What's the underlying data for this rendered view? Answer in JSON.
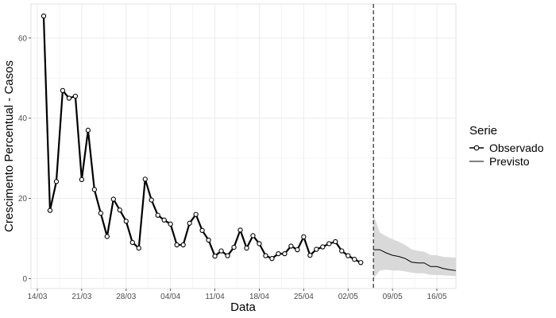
{
  "chart_data": {
    "type": "line",
    "xlabel": "Data",
    "ylabel": "Crescimento Percentual - Casos",
    "x_ticks": [
      "14/03",
      "21/03",
      "28/03",
      "04/04",
      "11/04",
      "18/04",
      "25/04",
      "02/05",
      "09/05",
      "16/05"
    ],
    "y_ticks": [
      0,
      20,
      40,
      60
    ],
    "ylim": [
      -2.5,
      68.5
    ],
    "xlim": [
      "2020-03-13",
      "2020-05-19"
    ],
    "grid": true,
    "legend": {
      "title": "Serie",
      "position": "right"
    },
    "vertical_line": {
      "x": "2020-05-06",
      "style": "dashed"
    },
    "colors": {
      "observed": "#000000",
      "forecast": "#000000",
      "ribbon": "#d9d9d9",
      "grid": "#ebebeb"
    },
    "series": [
      {
        "name": "Observado",
        "style": "line+points",
        "points": [
          [
            "2020-03-15",
            65.5
          ],
          [
            "2020-03-16",
            17.0
          ],
          [
            "2020-03-17",
            24.2
          ],
          [
            "2020-03-18",
            46.9
          ],
          [
            "2020-03-19",
            45.0
          ],
          [
            "2020-03-20",
            45.5
          ],
          [
            "2020-03-21",
            24.7
          ],
          [
            "2020-03-22",
            37.0
          ],
          [
            "2020-03-23",
            22.2
          ],
          [
            "2020-03-24",
            16.3
          ],
          [
            "2020-03-25",
            10.5
          ],
          [
            "2020-03-26",
            19.8
          ],
          [
            "2020-03-27",
            17.1
          ],
          [
            "2020-03-28",
            14.3
          ],
          [
            "2020-03-29",
            9.0
          ],
          [
            "2020-03-30",
            7.6
          ],
          [
            "2020-03-31",
            24.8
          ],
          [
            "2020-04-01",
            19.6
          ],
          [
            "2020-04-02",
            15.8
          ],
          [
            "2020-04-03",
            14.6
          ],
          [
            "2020-04-04",
            13.6
          ],
          [
            "2020-04-05",
            8.4
          ],
          [
            "2020-04-06",
            8.4
          ],
          [
            "2020-04-07",
            13.8
          ],
          [
            "2020-04-08",
            16.0
          ],
          [
            "2020-04-09",
            12.0
          ],
          [
            "2020-04-10",
            9.6
          ],
          [
            "2020-04-11",
            5.6
          ],
          [
            "2020-04-12",
            6.9
          ],
          [
            "2020-04-13",
            5.7
          ],
          [
            "2020-04-14",
            7.8
          ],
          [
            "2020-04-15",
            12.1
          ],
          [
            "2020-04-16",
            7.6
          ],
          [
            "2020-04-17",
            10.7
          ],
          [
            "2020-04-18",
            8.7
          ],
          [
            "2020-04-19",
            5.7
          ],
          [
            "2020-04-20",
            5.0
          ],
          [
            "2020-04-21",
            6.2
          ],
          [
            "2020-04-22",
            6.2
          ],
          [
            "2020-04-23",
            8.1
          ],
          [
            "2020-04-24",
            7.2
          ],
          [
            "2020-04-25",
            10.4
          ],
          [
            "2020-04-26",
            5.8
          ],
          [
            "2020-04-27",
            7.3
          ],
          [
            "2020-04-28",
            7.9
          ],
          [
            "2020-04-29",
            8.7
          ],
          [
            "2020-04-30",
            9.2
          ],
          [
            "2020-05-01",
            6.9
          ],
          [
            "2020-05-02",
            5.7
          ],
          [
            "2020-05-03",
            4.8
          ],
          [
            "2020-05-04",
            4.0
          ]
        ]
      },
      {
        "name": "Previsto",
        "style": "line+ribbon",
        "points": [
          [
            "2020-05-06",
            7.2,
            0.0,
            15.8
          ],
          [
            "2020-05-07",
            7.2,
            2.0,
            11.5
          ],
          [
            "2020-05-08",
            6.4,
            2.2,
            10.6
          ],
          [
            "2020-05-09",
            5.8,
            2.0,
            9.8
          ],
          [
            "2020-05-10",
            5.5,
            2.0,
            9.2
          ],
          [
            "2020-05-11",
            5.0,
            1.8,
            8.4
          ],
          [
            "2020-05-12",
            4.1,
            1.5,
            7.3
          ],
          [
            "2020-05-13",
            3.9,
            1.3,
            6.9
          ],
          [
            "2020-05-14",
            3.9,
            1.3,
            6.7
          ],
          [
            "2020-05-15",
            3.0,
            0.9,
            5.9
          ],
          [
            "2020-05-16",
            3.0,
            0.9,
            5.8
          ],
          [
            "2020-05-17",
            2.5,
            0.8,
            5.4
          ],
          [
            "2020-05-18",
            2.2,
            0.7,
            5.3
          ],
          [
            "2020-05-19",
            2.0,
            0.6,
            5.2
          ]
        ]
      }
    ]
  }
}
